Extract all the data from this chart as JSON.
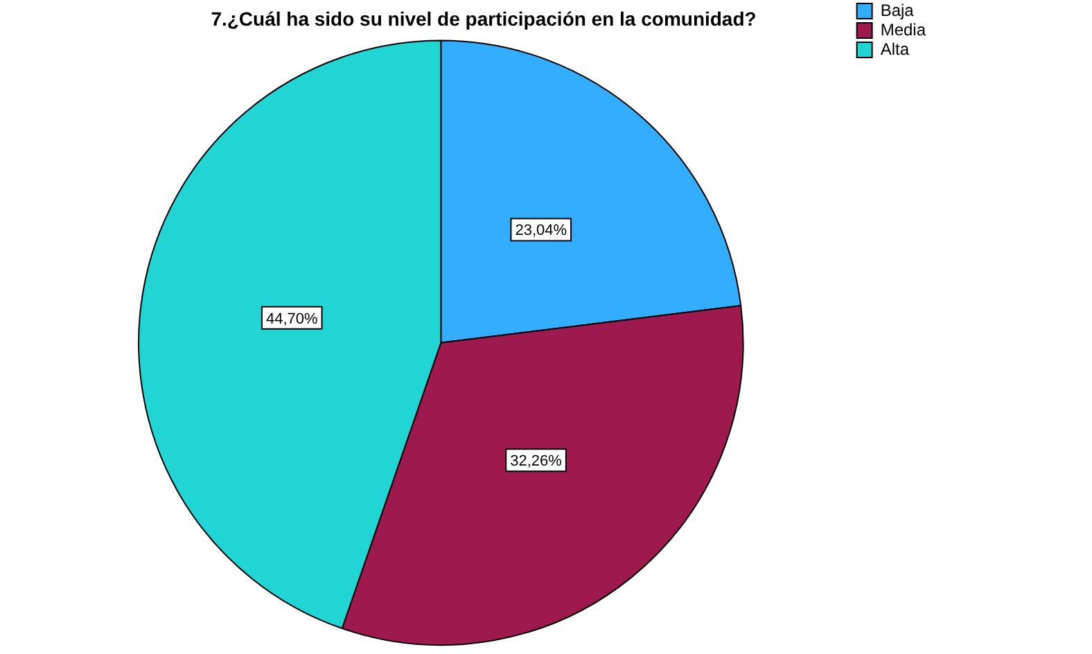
{
  "chart_data": {
    "type": "pie",
    "title": "7.¿Cuál ha sido su nivel de participación en la comunidad?",
    "categories": [
      "Baja",
      "Media",
      "Alta"
    ],
    "values": [
      23.04,
      32.26,
      44.7
    ],
    "colors": [
      "#33adff",
      "#9e1a4e",
      "#21d5d5"
    ],
    "value_labels": [
      "23,04%",
      "32,26%",
      "44,70%"
    ],
    "legend": "top right"
  }
}
